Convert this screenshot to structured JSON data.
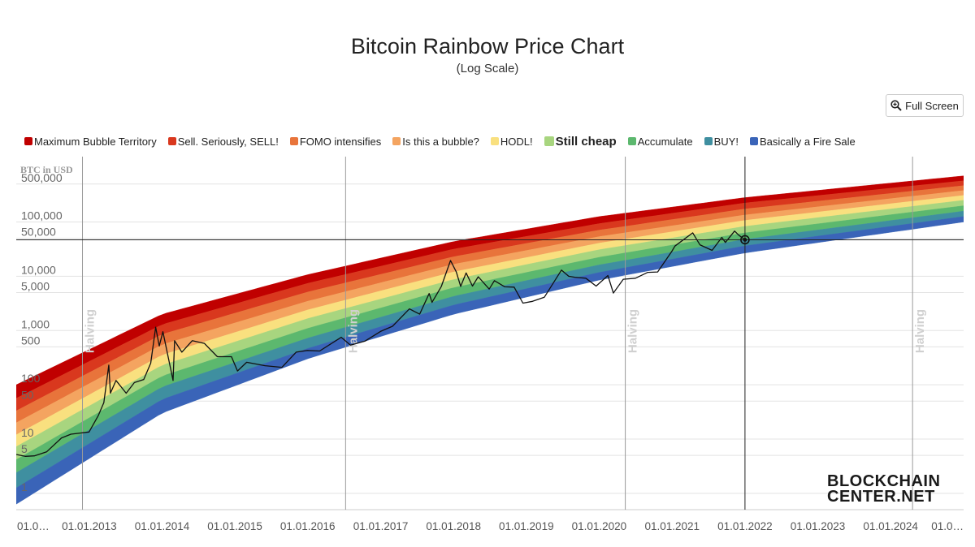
{
  "header": {
    "title": "Bitcoin Rainbow Price Chart",
    "subtitle": "(Log Scale)"
  },
  "toolbar": {
    "fullscreen_label": "Full Screen",
    "fullscreen_icon": "zoom-in-icon"
  },
  "brand": {
    "logo_line1": "BLOCKCHAIN",
    "logo_line2": "CENTER.NET"
  },
  "chart_data": {
    "type": "line",
    "title": "Bitcoin Rainbow Price Chart",
    "subtitle": "(Log Scale)",
    "ylabel": "BTC in USD",
    "yscale": "log",
    "ylim": [
      0.5,
      1600000
    ],
    "xlim": [
      "2012-01-01",
      "2025-01-01"
    ],
    "grid": true,
    "legend_position": "top",
    "y_ticks": [
      {
        "value": 500000,
        "label": "500,000"
      },
      {
        "value": 100000,
        "label": "100,000"
      },
      {
        "value": 50000,
        "label": "50,000"
      },
      {
        "value": 10000,
        "label": "10,000"
      },
      {
        "value": 5000,
        "label": "5,000"
      },
      {
        "value": 1000,
        "label": "1,000"
      },
      {
        "value": 500,
        "label": "500"
      },
      {
        "value": 100,
        "label": "100"
      },
      {
        "value": 50,
        "label": "50"
      },
      {
        "value": 10,
        "label": "10"
      },
      {
        "value": 5,
        "label": "5"
      },
      {
        "value": 1,
        "label": "1"
      }
    ],
    "x_ticks": [
      {
        "date": "2012-01-01",
        "label": "01.0…"
      },
      {
        "date": "2013-01-01",
        "label": "01.01.2013"
      },
      {
        "date": "2014-01-01",
        "label": "01.01.2014"
      },
      {
        "date": "2015-01-01",
        "label": "01.01.2015"
      },
      {
        "date": "2016-01-01",
        "label": "01.01.2016"
      },
      {
        "date": "2017-01-01",
        "label": "01.01.2017"
      },
      {
        "date": "2018-01-01",
        "label": "01.01.2018"
      },
      {
        "date": "2019-01-01",
        "label": "01.01.2019"
      },
      {
        "date": "2020-01-01",
        "label": "01.01.2020"
      },
      {
        "date": "2021-01-01",
        "label": "01.01.2021"
      },
      {
        "date": "2022-01-01",
        "label": "01.01.2022"
      },
      {
        "date": "2023-01-01",
        "label": "01.01.2023"
      },
      {
        "date": "2024-01-01",
        "label": "01.01.2024"
      },
      {
        "date": "2025-01-01",
        "label": "01.0…"
      }
    ],
    "halvings": [
      {
        "date": "2012-11-28",
        "label": "Halving"
      },
      {
        "date": "2016-07-09",
        "label": "Halving"
      },
      {
        "date": "2020-05-11",
        "label": "Halving"
      },
      {
        "date": "2024-04-20",
        "label": "Halving"
      }
    ],
    "crosshair": {
      "date": "2022-01-01",
      "value": 47000
    },
    "bands": [
      {
        "name": "Maximum Bubble Territory",
        "color": "#c00000",
        "bold": false
      },
      {
        "name": "Sell. Seriously, SELL!",
        "color": "#d9381e",
        "bold": false
      },
      {
        "name": "FOMO intensifies",
        "color": "#e8743b",
        "bold": false
      },
      {
        "name": "Is this a bubble?",
        "color": "#f4a460",
        "bold": false
      },
      {
        "name": "HODL!",
        "color": "#f9e07f",
        "bold": false
      },
      {
        "name": "Still cheap",
        "color": "#a8d57f",
        "bold": true
      },
      {
        "name": "Accumulate",
        "color": "#5cb86e",
        "bold": false
      },
      {
        "name": "BUY!",
        "color": "#3f8fa0",
        "bold": false
      },
      {
        "name": "Basically a Fire Sale",
        "color": "#3a64b8",
        "bold": false
      }
    ],
    "band_bounds_log10": {
      "2012-01-01": [
        2.0,
        1.75,
        1.52,
        1.3,
        1.08,
        0.86,
        0.62,
        0.38,
        0.1,
        -0.2
      ],
      "2014-01-01": [
        3.3,
        3.11,
        2.93,
        2.74,
        2.55,
        2.36,
        2.16,
        1.96,
        1.73,
        1.48
      ],
      "2016-01-01": [
        4.03,
        3.87,
        3.71,
        3.54,
        3.38,
        3.22,
        3.04,
        2.86,
        2.67,
        2.48
      ],
      "2018-01-01": [
        4.64,
        4.5,
        4.36,
        4.22,
        4.08,
        3.94,
        3.79,
        3.63,
        3.47,
        3.3
      ],
      "2020-01-01": [
        5.1,
        4.97,
        4.85,
        4.73,
        4.61,
        4.49,
        4.35,
        4.21,
        4.07,
        3.93
      ],
      "2022-01-01": [
        5.45,
        5.35,
        5.24,
        5.13,
        5.03,
        4.92,
        4.8,
        4.68,
        4.56,
        4.43
      ],
      "2025-01-01": [
        5.85,
        5.76,
        5.67,
        5.58,
        5.49,
        5.4,
        5.3,
        5.2,
        5.1,
        5.0
      ]
    },
    "series": [
      {
        "name": "BTC price",
        "points": [
          [
            "2012-01-01",
            5.2
          ],
          [
            "2012-02-15",
            4.8
          ],
          [
            "2012-04-01",
            4.9
          ],
          [
            "2012-06-01",
            5.8
          ],
          [
            "2012-08-15",
            10.5
          ],
          [
            "2012-10-01",
            12.3
          ],
          [
            "2012-12-31",
            13.5
          ],
          [
            "2013-02-15",
            27
          ],
          [
            "2013-03-15",
            47
          ],
          [
            "2013-04-09",
            230
          ],
          [
            "2013-04-17",
            70
          ],
          [
            "2013-05-15",
            120
          ],
          [
            "2013-07-05",
            70
          ],
          [
            "2013-08-15",
            110
          ],
          [
            "2013-10-01",
            125
          ],
          [
            "2013-11-05",
            250
          ],
          [
            "2013-11-30",
            1150
          ],
          [
            "2013-12-18",
            520
          ],
          [
            "2014-01-05",
            950
          ],
          [
            "2014-02-25",
            120
          ],
          [
            "2014-03-05",
            650
          ],
          [
            "2014-04-10",
            400
          ],
          [
            "2014-06-01",
            650
          ],
          [
            "2014-08-01",
            580
          ],
          [
            "2014-10-05",
            330
          ],
          [
            "2014-12-15",
            330
          ],
          [
            "2015-01-14",
            180
          ],
          [
            "2015-03-01",
            260
          ],
          [
            "2015-06-01",
            225
          ],
          [
            "2015-08-25",
            210
          ],
          [
            "2015-11-04",
            400
          ],
          [
            "2015-12-31",
            430
          ],
          [
            "2016-03-01",
            420
          ],
          [
            "2016-06-17",
            750
          ],
          [
            "2016-08-02",
            540
          ],
          [
            "2016-10-15",
            640
          ],
          [
            "2016-12-31",
            960
          ],
          [
            "2017-03-01",
            1200
          ],
          [
            "2017-05-25",
            2500
          ],
          [
            "2017-07-15",
            2000
          ],
          [
            "2017-09-01",
            4800
          ],
          [
            "2017-09-15",
            3300
          ],
          [
            "2017-11-01",
            6500
          ],
          [
            "2017-12-17",
            19500
          ],
          [
            "2018-01-15",
            12000
          ],
          [
            "2018-02-06",
            6500
          ],
          [
            "2018-03-05",
            11500
          ],
          [
            "2018-04-06",
            6600
          ],
          [
            "2018-05-05",
            9800
          ],
          [
            "2018-06-29",
            5800
          ],
          [
            "2018-07-25",
            8300
          ],
          [
            "2018-09-15",
            6400
          ],
          [
            "2018-11-01",
            6300
          ],
          [
            "2018-12-15",
            3200
          ],
          [
            "2019-02-01",
            3450
          ],
          [
            "2019-04-01",
            4100
          ],
          [
            "2019-06-26",
            13000
          ],
          [
            "2019-08-01",
            10000
          ],
          [
            "2019-09-01",
            9600
          ],
          [
            "2019-10-26",
            9200
          ],
          [
            "2019-12-17",
            6600
          ],
          [
            "2020-02-14",
            10300
          ],
          [
            "2020-03-12",
            4900
          ],
          [
            "2020-05-01",
            8800
          ],
          [
            "2020-07-01",
            9200
          ],
          [
            "2020-09-01",
            11800
          ],
          [
            "2020-10-20",
            12000
          ],
          [
            "2020-12-31",
            29000
          ],
          [
            "2021-01-15",
            36000
          ],
          [
            "2021-04-14",
            63000
          ],
          [
            "2021-05-20",
            38000
          ],
          [
            "2021-07-20",
            30000
          ],
          [
            "2021-09-07",
            52000
          ],
          [
            "2021-09-25",
            42000
          ],
          [
            "2021-11-10",
            68000
          ],
          [
            "2021-12-01",
            57000
          ],
          [
            "2022-01-01",
            47000
          ]
        ]
      }
    ]
  }
}
